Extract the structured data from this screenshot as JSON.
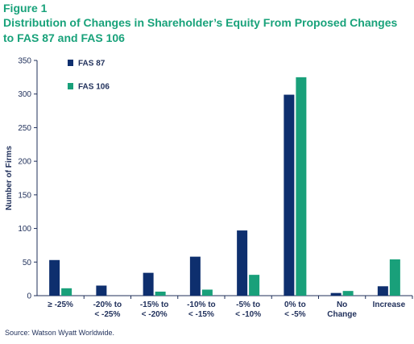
{
  "figure_label": "Figure 1",
  "title": "Distribution of Changes in Shareholder’s Equity From Proposed Changes to FAS 87 and FAS 106",
  "source": "Source: Watson Wyatt Worldwide.",
  "colors": {
    "title": "#18a27a",
    "fas87": "#0e2f6e",
    "fas106": "#19a07a",
    "text": "#1f2f5a"
  },
  "chart_data": {
    "type": "bar",
    "ylabel": "Number of Firms",
    "xlabel": "",
    "ylim": [
      0,
      350
    ],
    "yticks": [
      0,
      50,
      100,
      150,
      200,
      250,
      300,
      350
    ],
    "grid": false,
    "legend_position": "top-left",
    "categories": [
      [
        "≥ -25%"
      ],
      [
        "-20% to",
        "< -25%"
      ],
      [
        "-15% to",
        "< -20%"
      ],
      [
        "-10% to",
        "< -15%"
      ],
      [
        "-5% to",
        "< -10%"
      ],
      [
        "0% to",
        "< -5%"
      ],
      [
        "No",
        "Change"
      ],
      [
        "Increase"
      ]
    ],
    "series": [
      {
        "name": "FAS 87",
        "values": [
          53,
          15,
          34,
          58,
          97,
          299,
          4,
          14
        ]
      },
      {
        "name": "FAS 106",
        "values": [
          11,
          0,
          6,
          9,
          31,
          325,
          7,
          54
        ]
      }
    ]
  }
}
